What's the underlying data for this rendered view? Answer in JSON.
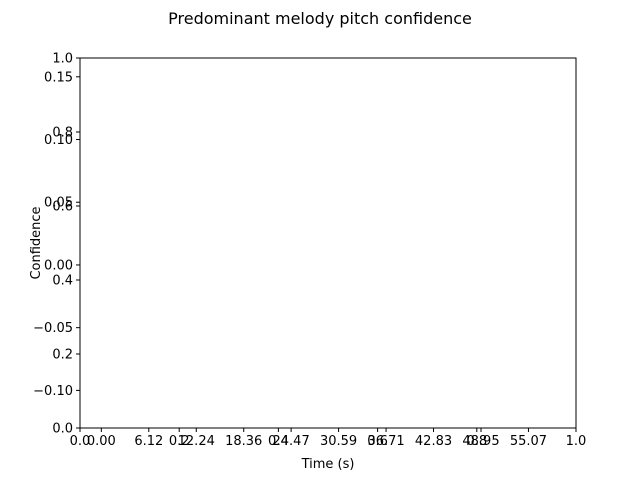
{
  "chart_data": {
    "type": "line",
    "title": "Predominant melody pitch confidence",
    "xlabel": "Time (s)",
    "ylabel": "Confidence",
    "grid": false,
    "overlaid_axes": true,
    "axes": [
      {
        "x_ticks": [
          0.0,
          0.2,
          0.4,
          0.6,
          0.8,
          1.0
        ],
        "x_tick_labels": [
          "0.0",
          "0.2",
          "0.4",
          "0.6",
          "0.8",
          "1.0"
        ],
        "y_ticks": [
          0.0,
          0.2,
          0.4,
          0.6,
          0.8,
          1.0
        ],
        "y_tick_labels": [
          "0.0",
          "0.2",
          "0.4",
          "0.6",
          "0.8",
          "1.0"
        ],
        "xlim": [
          0.0,
          1.0
        ],
        "ylim": [
          0.0,
          1.0
        ]
      },
      {
        "x_ticks": [
          0.0,
          6.12,
          12.24,
          18.36,
          24.47,
          30.59,
          36.71,
          42.83,
          48.95,
          55.07
        ],
        "x_tick_labels": [
          "0.00",
          "6.12",
          "12.24",
          "18.36",
          "24.47",
          "30.59",
          "36.71",
          "42.83",
          "48.95",
          "55.07"
        ],
        "y_ticks": [
          -0.1,
          -0.05,
          0.0,
          0.05,
          0.1,
          0.15
        ],
        "y_tick_labels": [
          "−0.10",
          "−0.05",
          "0.00",
          "0.05",
          "0.10",
          "0.15"
        ],
        "xlim": [
          -2.75,
          61.2
        ],
        "ylim": [
          -0.13,
          0.165
        ]
      }
    ],
    "series": []
  }
}
